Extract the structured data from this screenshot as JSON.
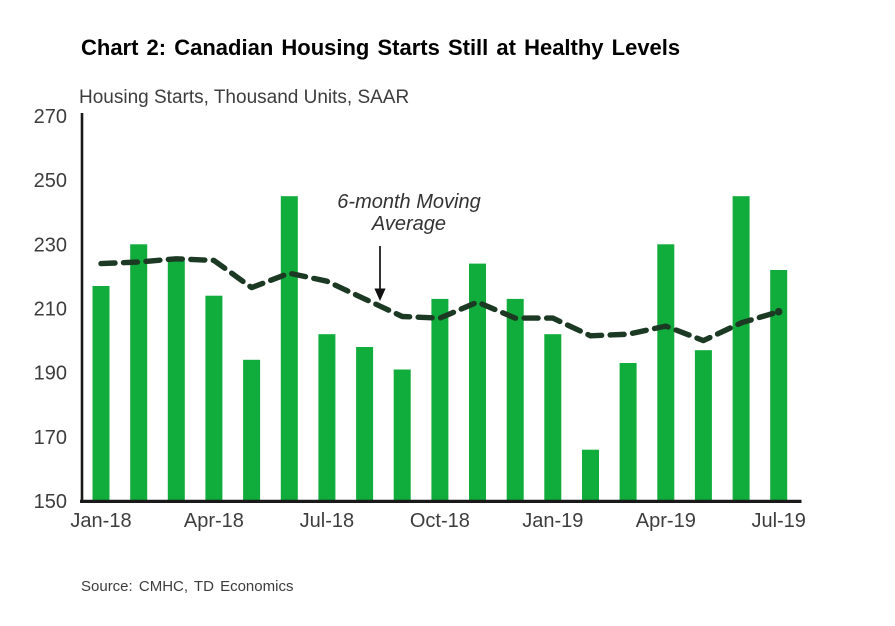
{
  "header": {
    "title": "Chart 2: Canadian Housing Starts Still at Healthy Levels"
  },
  "annotation": {
    "line1": "6-month Moving",
    "line2": "Average"
  },
  "source": {
    "text": "Source: CMHC, TD Economics"
  },
  "colors": {
    "bar_green": "#10AC3C",
    "ma_dark_green": "#1C3A23",
    "axis_line": "#1a1a1a",
    "tick_text": "#3d3d3d",
    "annotation_text": "#333333",
    "arrow_black": "#111111"
  },
  "chart_data": {
    "type": "bar",
    "title": "Chart 2: Canadian Housing Starts Still at Healthy Levels",
    "ylabel": "Housing Starts, Thousand Units, SAAR",
    "xlabel": "",
    "ylim": [
      150,
      270
    ],
    "yticks": [
      150,
      170,
      190,
      210,
      230,
      250,
      270
    ],
    "grid": false,
    "legend_position": "none (in-chart annotation with arrow instead)",
    "categories": [
      "Jan-18",
      "Feb-18",
      "Mar-18",
      "Apr-18",
      "May-18",
      "Jun-18",
      "Jul-18",
      "Aug-18",
      "Sep-18",
      "Oct-18",
      "Nov-18",
      "Dec-18",
      "Jan-19",
      "Feb-19",
      "Mar-19",
      "Apr-19",
      "May-19",
      "Jun-19",
      "Jul-19"
    ],
    "xtick_labels_shown": [
      "Jan-18",
      "Apr-18",
      "Jul-18",
      "Oct-18",
      "Jan-19",
      "Apr-19",
      "Jul-19"
    ],
    "series": [
      {
        "name": "Housing Starts",
        "type": "bar",
        "values": [
          217,
          230,
          225,
          214,
          194,
          245,
          202,
          198,
          191,
          213,
          224,
          213,
          202,
          166,
          193,
          230,
          197,
          245,
          222
        ]
      },
      {
        "name": "6-month Moving Average",
        "type": "dashed-line",
        "values": [
          224,
          224.5,
          225.5,
          225,
          216.5,
          221,
          218.5,
          213,
          207.5,
          207,
          212,
          207,
          207,
          201.5,
          202,
          204.5,
          200,
          205.5,
          209
        ]
      }
    ]
  }
}
